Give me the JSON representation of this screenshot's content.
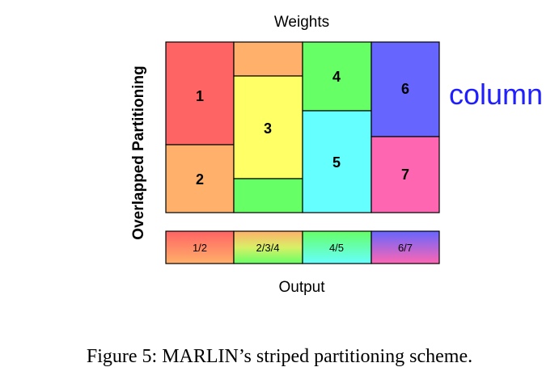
{
  "top_label": "Weights",
  "side_label": "Overlapped Partitioning",
  "bottom_label": "Output",
  "column_label": "column",
  "caption": "Figure 5: MARLIN’s striped partitioning scheme.",
  "colors": {
    "red": "#ff6464",
    "orange": "#ffb06a",
    "yellow": "#ffff66",
    "green": "#66ff66",
    "cyan": "#66ffff",
    "blue": "#6666ff",
    "pink": "#ff66b2",
    "column_text": "#1e1eff"
  },
  "partitions": [
    {
      "id": "1",
      "label": "1"
    },
    {
      "id": "2",
      "label": "2"
    },
    {
      "id": "3",
      "label": "3"
    },
    {
      "id": "4",
      "label": "4"
    },
    {
      "id": "5",
      "label": "5"
    },
    {
      "id": "6",
      "label": "6"
    },
    {
      "id": "7",
      "label": "7"
    }
  ],
  "outputs": [
    {
      "label": "1/2"
    },
    {
      "label": "2/3/4"
    },
    {
      "label": "4/5"
    },
    {
      "label": "6/7"
    }
  ]
}
